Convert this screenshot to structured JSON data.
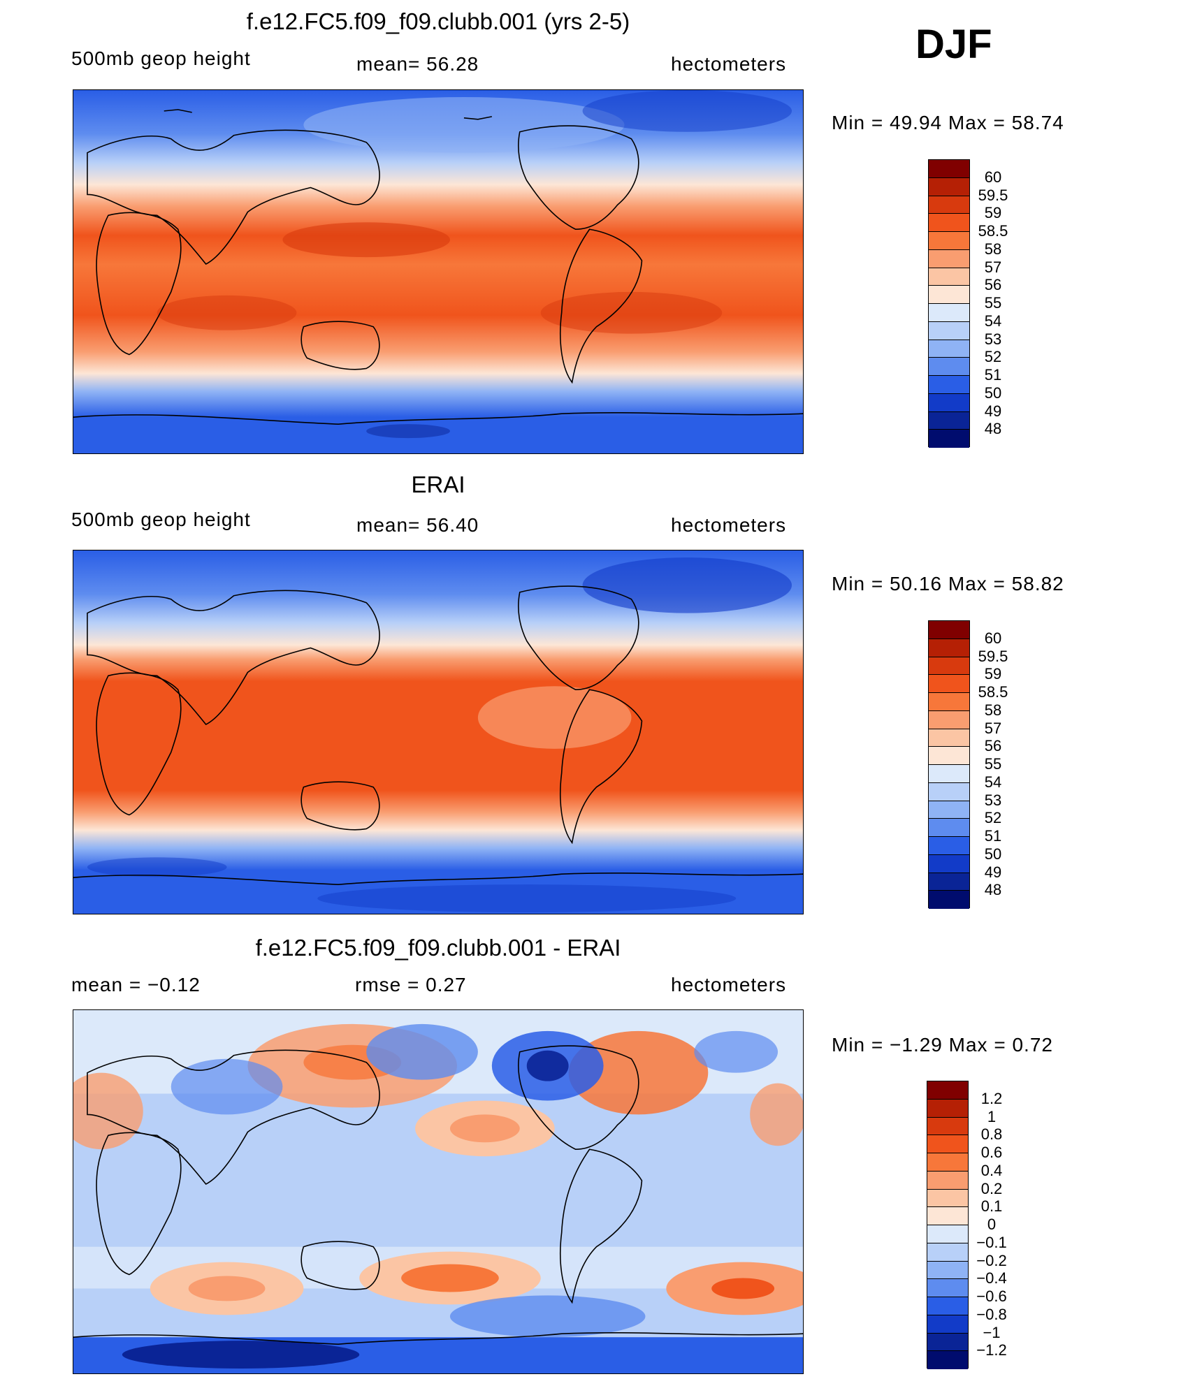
{
  "season": "DJF",
  "panels": [
    {
      "id": "model",
      "title": "f.e12.FC5.f09_f09.clubb.001 (yrs 2-5)",
      "left_text": "500mb geop height",
      "center_text": "mean=  56.28",
      "right_text": "hectometers",
      "minmax_text": "Min =   49.94 Max =   58.74",
      "colorbar": {
        "labels": [
          "60",
          "59.5",
          "59",
          "58.5",
          "58",
          "57",
          "56",
          "55",
          "54",
          "53",
          "52",
          "51",
          "50",
          "49",
          "48"
        ],
        "colors": [
          "#800000",
          "#b52005",
          "#d83a0e",
          "#f0541c",
          "#f7773a",
          "#f99d70",
          "#fbc5a4",
          "#fde6d6",
          "#dce9fa",
          "#b8d0f8",
          "#8fb3f5",
          "#5e8cef",
          "#2a5ee6",
          "#123bc8",
          "#0a2496",
          "#000c6e"
        ]
      },
      "map_fill": "field-model"
    },
    {
      "id": "obs",
      "title": "ERAI",
      "left_text": "500mb geop height",
      "center_text": "mean=  56.40",
      "right_text": "hectometers",
      "minmax_text": "Min =   50.16 Max =   58.82",
      "colorbar": {
        "labels": [
          "60",
          "59.5",
          "59",
          "58.5",
          "58",
          "57",
          "56",
          "55",
          "54",
          "53",
          "52",
          "51",
          "50",
          "49",
          "48"
        ],
        "colors": [
          "#800000",
          "#b52005",
          "#d83a0e",
          "#f0541c",
          "#f7773a",
          "#f99d70",
          "#fbc5a4",
          "#fde6d6",
          "#dce9fa",
          "#b8d0f8",
          "#8fb3f5",
          "#5e8cef",
          "#2a5ee6",
          "#123bc8",
          "#0a2496",
          "#000c6e"
        ]
      },
      "map_fill": "field-obs"
    },
    {
      "id": "diff",
      "title": "f.e12.FC5.f09_f09.clubb.001 - ERAI",
      "left_text": "mean =   −0.12",
      "center_text": "rmse =    0.27",
      "right_text": "hectometers",
      "minmax_text": "Min =   −1.29 Max =    0.72",
      "colorbar": {
        "labels": [
          "1.2",
          "1",
          "0.8",
          "0.6",
          "0.4",
          "0.2",
          "0.1",
          "0",
          "−0.1",
          "−0.2",
          "−0.4",
          "−0.6",
          "−0.8",
          "−1",
          "−1.2"
        ],
        "colors": [
          "#800000",
          "#b52005",
          "#d83a0e",
          "#f0541c",
          "#f7773a",
          "#f99d70",
          "#fbc5a4",
          "#fde6d6",
          "#dce9fa",
          "#b8d0f8",
          "#8fb3f5",
          "#5e8cef",
          "#2a5ee6",
          "#123bc8",
          "#0a2496",
          "#000c6e"
        ]
      },
      "map_fill": "field-diff"
    }
  ]
}
